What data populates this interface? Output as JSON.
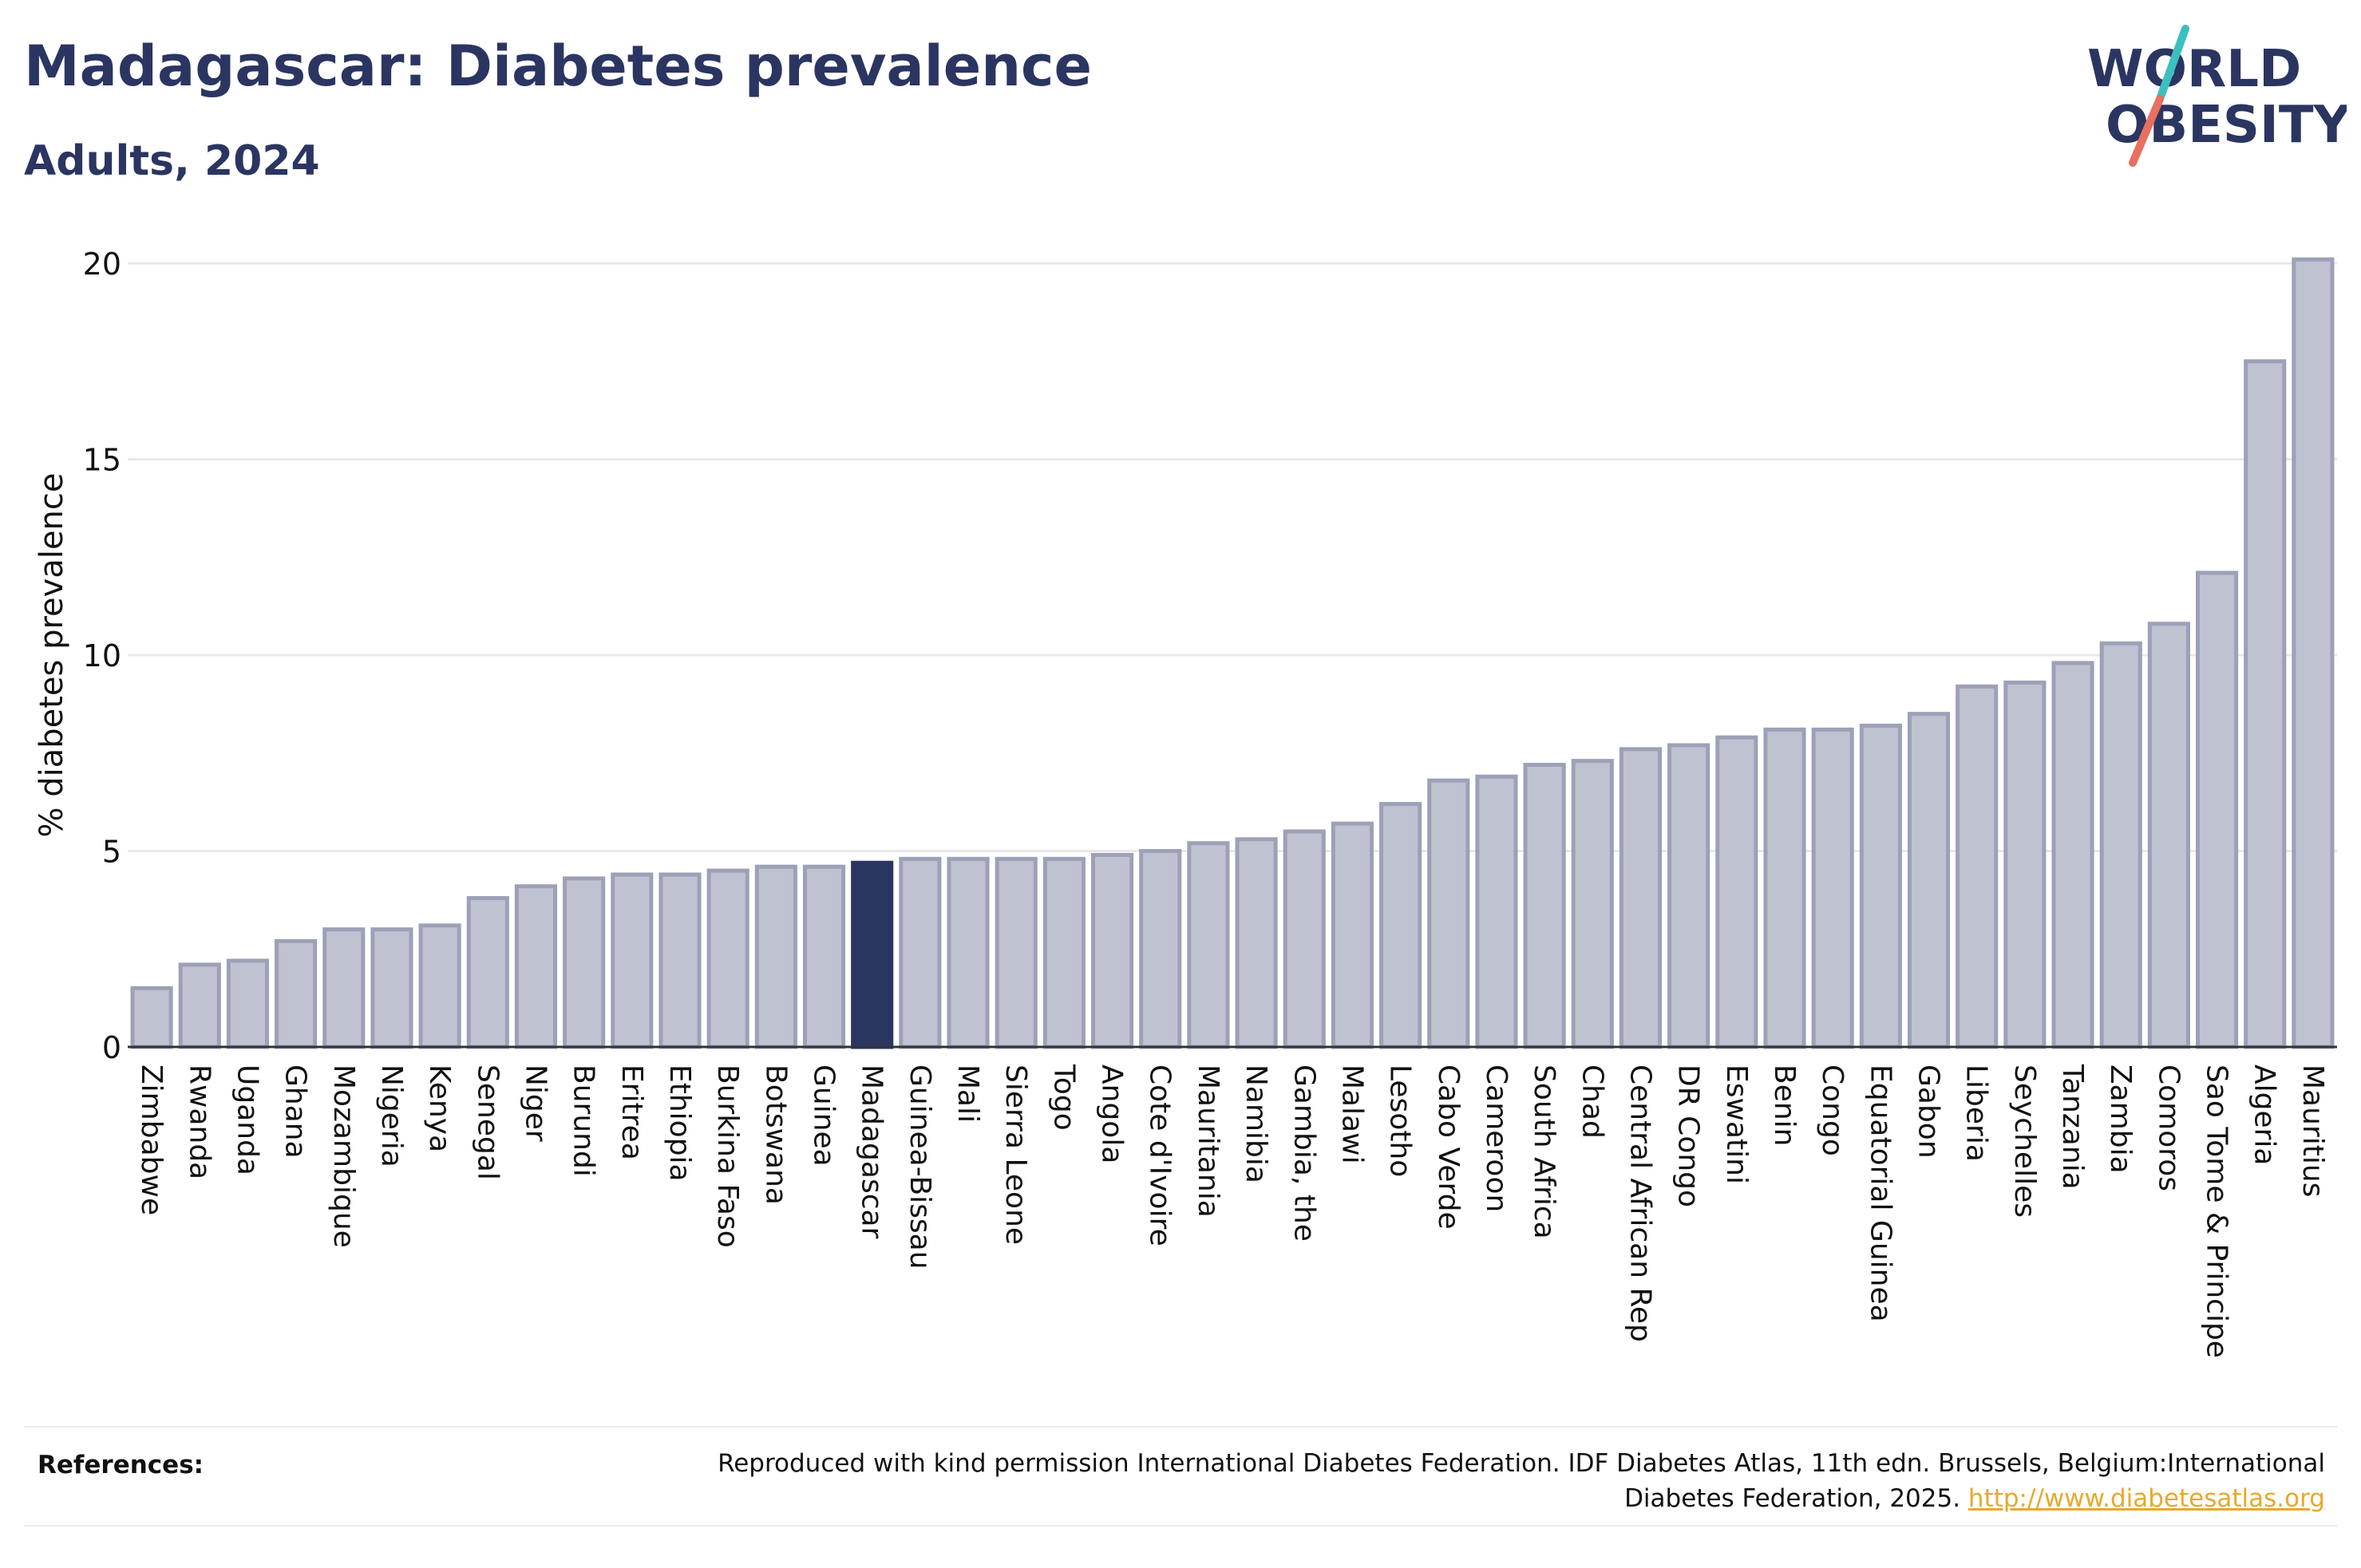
{
  "header": {
    "title": "Madagascar: Diabetes prevalence",
    "subtitle": "Adults, 2024"
  },
  "logo": {
    "line1": "WORLD",
    "line2": "OBESITY",
    "colors": {
      "text": "#2b3561",
      "slash_top": "#3bbfbf",
      "slash_bottom": "#e8705f"
    }
  },
  "colors": {
    "bar": "#bfc2d1",
    "bar_border": "#9da1b7",
    "highlight": "#2b3561",
    "grid": "#e8e8e8",
    "axis": "#333333",
    "text": "#111111"
  },
  "chart_data": {
    "type": "bar",
    "title": "Madagascar: Diabetes prevalence",
    "subtitle": "Adults, 2024",
    "xlabel": "",
    "ylabel": "% diabetes prevalence",
    "ylim": [
      0,
      20.5
    ],
    "yticks": [
      0,
      5,
      10,
      15,
      20
    ],
    "grid": true,
    "highlight": "Madagascar",
    "categories": [
      "Zimbabwe",
      "Rwanda",
      "Uganda",
      "Ghana",
      "Mozambique",
      "Nigeria",
      "Kenya",
      "Senegal",
      "Niger",
      "Burundi",
      "Eritrea",
      "Ethiopia",
      "Burkina Faso",
      "Botswana",
      "Guinea",
      "Madagascar",
      "Guinea-Bissau",
      "Mali",
      "Sierra Leone",
      "Togo",
      "Angola",
      "Cote d'Ivoire",
      "Mauritania",
      "Namibia",
      "Gambia, the",
      "Malawi",
      "Lesotho",
      "Cabo Verde",
      "Cameroon",
      "South Africa",
      "Chad",
      "Central African Rep",
      "DR Congo",
      "Eswatini",
      "Benin",
      "Congo",
      "Equatorial Guinea",
      "Gabon",
      "Liberia",
      "Seychelles",
      "Tanzania",
      "Zambia",
      "Comoros",
      "Sao Tome & Principe",
      "Algeria",
      "Mauritius"
    ],
    "values": [
      1.5,
      2.1,
      2.2,
      2.7,
      3.0,
      3.0,
      3.1,
      3.8,
      4.1,
      4.3,
      4.4,
      4.4,
      4.5,
      4.6,
      4.6,
      4.7,
      4.8,
      4.8,
      4.8,
      4.8,
      4.9,
      5.0,
      5.2,
      5.3,
      5.5,
      5.7,
      6.2,
      6.8,
      6.9,
      7.2,
      7.3,
      7.6,
      7.7,
      7.9,
      8.1,
      8.1,
      8.2,
      8.5,
      9.2,
      9.3,
      9.8,
      10.3,
      10.8,
      12.1,
      17.5,
      20.1
    ]
  },
  "footer": {
    "references_label": "References:",
    "references_text": "Reproduced with kind permission International Diabetes Federation. IDF Diabetes Atlas, 11th edn. Brussels, Belgium:International Diabetes Federation, 2025.",
    "references_link": "http://www.diabetesatlas.org"
  }
}
